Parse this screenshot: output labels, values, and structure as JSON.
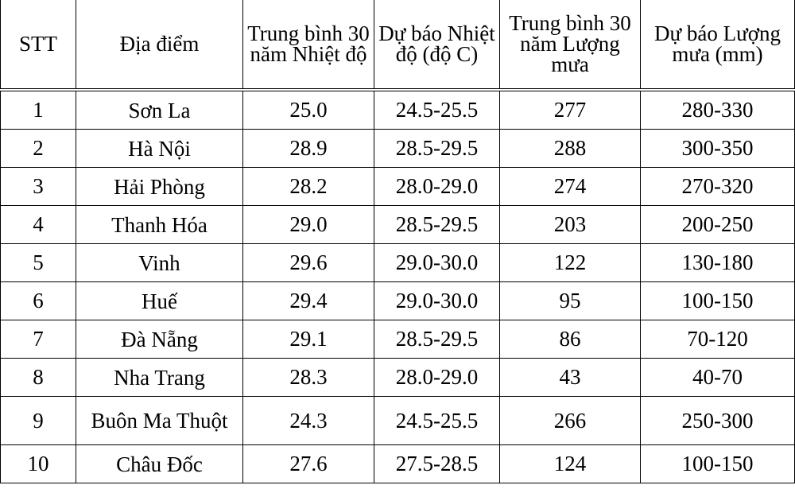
{
  "table": {
    "headers": [
      "STT",
      "Địa điểm",
      "Trung bình 30 năm Nhiệt độ",
      "Dự báo Nhiệt độ (độ C)",
      "Trung bình 30 năm Lượng mưa",
      "Dự báo Lượng mưa (mm)"
    ],
    "rows": [
      [
        "1",
        "Sơn La",
        "25.0",
        "24.5-25.5",
        "277",
        "280-330"
      ],
      [
        "2",
        "Hà Nội",
        "28.9",
        "28.5-29.5",
        "288",
        "300-350"
      ],
      [
        "3",
        "Hải Phòng",
        "28.2",
        "28.0-29.0",
        "274",
        "270-320"
      ],
      [
        "4",
        "Thanh Hóa",
        "29.0",
        "28.5-29.5",
        "203",
        "200-250"
      ],
      [
        "5",
        "Vinh",
        "29.6",
        "29.0-30.0",
        "122",
        "130-180"
      ],
      [
        "6",
        "Huế",
        "29.4",
        "29.0-30.0",
        "95",
        "100-150"
      ],
      [
        "7",
        "Đà Nẵng",
        "29.1",
        "28.5-29.5",
        "86",
        "70-120"
      ],
      [
        "8",
        "Nha Trang",
        "28.3",
        "28.0-29.0",
        "43",
        "40-70"
      ],
      [
        "9",
        "Buôn Ma Thuột",
        "24.3",
        "24.5-25.5",
        "266",
        "250-300"
      ],
      [
        "10",
        "Châu Đốc",
        "27.6",
        "27.5-28.5",
        "124",
        "100-150"
      ]
    ]
  }
}
